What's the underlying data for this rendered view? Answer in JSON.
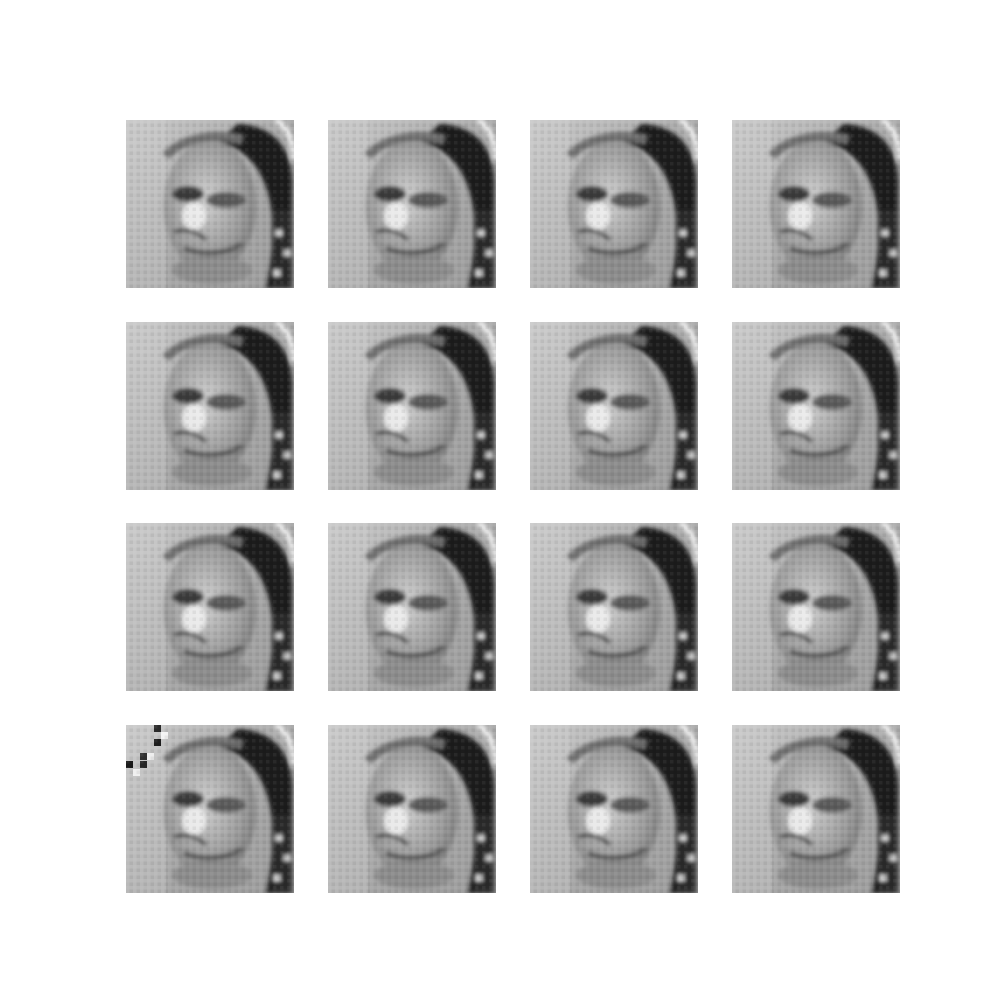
{
  "figure": {
    "description": "",
    "rows": 4,
    "cols": 4,
    "tiles": [
      {
        "row": 1,
        "col": 1,
        "variant": "standard"
      },
      {
        "row": 1,
        "col": 2,
        "variant": "standard"
      },
      {
        "row": 1,
        "col": 3,
        "variant": "standard"
      },
      {
        "row": 1,
        "col": 4,
        "variant": "standard"
      },
      {
        "row": 2,
        "col": 1,
        "variant": "standard"
      },
      {
        "row": 2,
        "col": 2,
        "variant": "standard"
      },
      {
        "row": 2,
        "col": 3,
        "variant": "standard"
      },
      {
        "row": 2,
        "col": 4,
        "variant": "standard"
      },
      {
        "row": 3,
        "col": 1,
        "variant": "standard"
      },
      {
        "row": 3,
        "col": 2,
        "variant": "standard"
      },
      {
        "row": 3,
        "col": 3,
        "variant": "standard"
      },
      {
        "row": 3,
        "col": 4,
        "variant": "standard"
      },
      {
        "row": 4,
        "col": 1,
        "variant": "artifact-top-left"
      },
      {
        "row": 4,
        "col": 2,
        "variant": "standard"
      },
      {
        "row": 4,
        "col": 3,
        "variant": "standard"
      },
      {
        "row": 4,
        "col": 4,
        "variant": "standard"
      }
    ],
    "palette": {
      "background": "#ffffff",
      "tile_base": "#b4b4b4",
      "hair_dark": "#1c1c1c",
      "face_mid": "#9a9a9a",
      "face_light": "#cfcfcf",
      "highlight": "#f2f2f2"
    }
  }
}
